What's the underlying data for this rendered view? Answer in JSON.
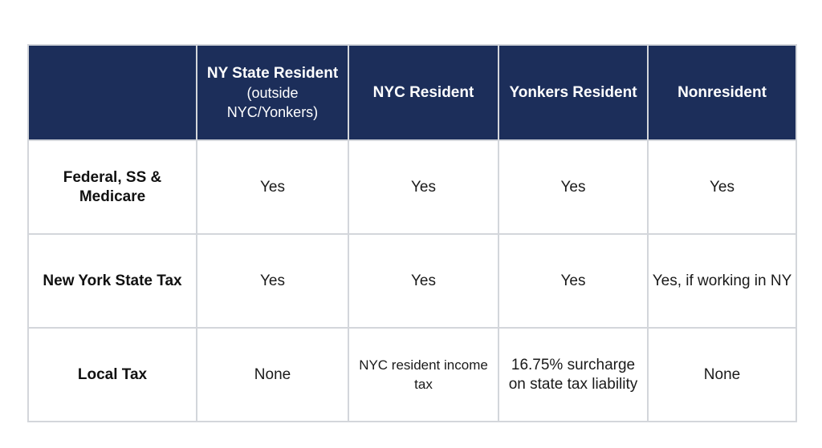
{
  "table": {
    "corner": "",
    "columns": [
      {
        "title": "NY State Resident",
        "subtitle": "(outside NYC/Yonkers)"
      },
      {
        "title": "NYC Resident",
        "subtitle": ""
      },
      {
        "title": "Yonkers Resident",
        "subtitle": ""
      },
      {
        "title": "Nonresident",
        "subtitle": ""
      }
    ],
    "rows": [
      {
        "label": "Federal, SS & Medicare",
        "cells": [
          "Yes",
          "Yes",
          "Yes",
          "Yes"
        ]
      },
      {
        "label": "New York State Tax",
        "cells": [
          "Yes",
          "Yes",
          "Yes",
          "Yes, if working in NY"
        ]
      },
      {
        "label": "Local Tax",
        "cells": [
          "None",
          "NYC resident income tax",
          "16.75% surcharge on state tax liability",
          "None"
        ]
      }
    ]
  },
  "colors": {
    "header_background": "#1c2e5a",
    "header_text": "#ffffff",
    "border": "#d3d6db",
    "body_text": "#1a1a1a"
  }
}
